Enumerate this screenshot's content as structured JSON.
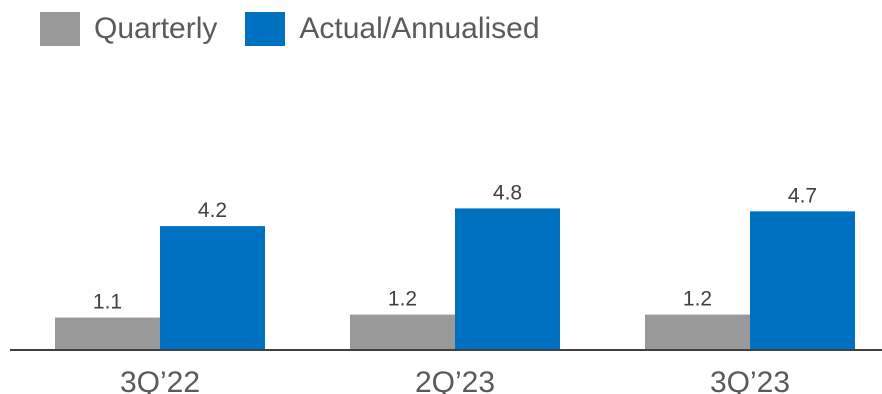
{
  "chart_data": {
    "type": "bar",
    "categories": [
      "3Q’22",
      "2Q’23",
      "3Q’23"
    ],
    "series": [
      {
        "name": "Quarterly",
        "values": [
          1.1,
          1.2,
          1.2
        ],
        "color": "#999999"
      },
      {
        "name": "Actual/Annualised",
        "values": [
          4.2,
          4.8,
          4.7
        ],
        "color": "#0070c0"
      }
    ],
    "data_labels": [
      [
        "1.1",
        "1.2",
        "1.2"
      ],
      [
        "4.2",
        "4.8",
        "4.7"
      ]
    ],
    "ylim": [
      0,
      6
    ],
    "legend": "top-left",
    "grid": false,
    "axis_color": "#404040"
  }
}
